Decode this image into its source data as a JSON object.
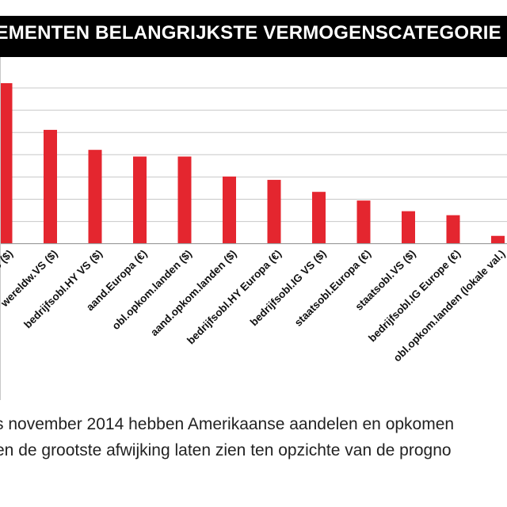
{
  "title": "DEMENTEN BELANGRIJKSTE VERMOGENSCATEGORIE",
  "caption": {
    "line1": "s november 2014 hebben Amerikaanse aandelen en opkomen",
    "line2": "en de grootste afwijking laten zien ten opzichte van de progno"
  },
  "colors": {
    "bar": "#e4262f",
    "title_bg": "#000000",
    "title_text": "#ffffff",
    "grid": "#c8c8c8"
  },
  "chart_data": {
    "type": "bar",
    "title": "DEMENTEN BELANGRIJKSTE VERMOGENSCATEGORIE",
    "xlabel": "",
    "ylabel": "",
    "grid": true,
    "categories": [
      "S ($)",
      "wereldw.VS ($)",
      "bedrijfsobl.HY VS ($)",
      "aand.Europa (€)",
      "obl.opkom.landen ($)",
      "aand.opkom.landen ($)",
      "bedrijfsobl.HY Europa (€)",
      "bedrijfsobl.IG VS ($)",
      "staatsobl.Europa (€)",
      "staatsobl.VS ($)",
      "bedrijfsobl.IG Europe (€)",
      "obl.opkom.landen (lokale val.)"
    ],
    "values": [
      24,
      17,
      14,
      13,
      13,
      10,
      9.5,
      7.7,
      6.4,
      4.8,
      4.2,
      1.1
    ],
    "ylim": [
      0,
      24
    ]
  }
}
